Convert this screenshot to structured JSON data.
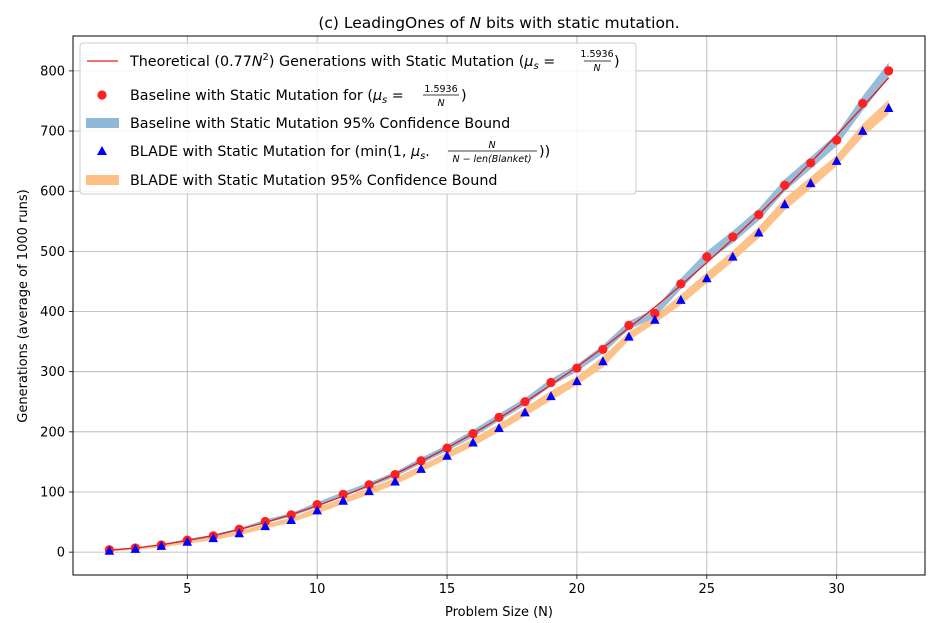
{
  "chart_data": {
    "type": "line",
    "title": "(c) LeadingOnes of N bits with static mutation.",
    "title_parts": [
      "(c) LeadingOnes of ",
      "N",
      " bits with static mutation."
    ],
    "xlabel": "Problem Size (N)",
    "ylabel": "Generations (average of 1000 runs)",
    "xlim": [
      0.6,
      33.4
    ],
    "ylim": [
      -38,
      858
    ],
    "xticks": [
      5,
      10,
      15,
      20,
      25,
      30
    ],
    "yticks": [
      0,
      100,
      200,
      300,
      400,
      500,
      600,
      700,
      800
    ],
    "grid": true,
    "legend_position": "upper-left",
    "colors": {
      "theory": "#e31a1c",
      "baseline_point": "#ff2020",
      "baseline_band": "#8fb8d9",
      "blade_point": "#0000ff",
      "blade_band": "#fdbf84"
    },
    "x": [
      2,
      3,
      4,
      5,
      6,
      7,
      8,
      9,
      10,
      11,
      12,
      13,
      14,
      15,
      16,
      17,
      18,
      19,
      20,
      21,
      22,
      23,
      24,
      25,
      26,
      27,
      28,
      29,
      30,
      31,
      32
    ],
    "series": [
      {
        "name": "theoretical",
        "legend": "Theoretical (0.77N²) Generations with Static Mutation (μs = 1.5936/N)",
        "kind": "line",
        "values": [
          3.1,
          6.9,
          12.3,
          19.3,
          27.7,
          37.7,
          49.3,
          62.4,
          77.0,
          93.2,
          110.9,
          130.1,
          150.9,
          173.3,
          197.1,
          222.5,
          249.5,
          278.0,
          308.0,
          339.6,
          372.7,
          407.3,
          443.5,
          481.3,
          520.5,
          561.3,
          603.7,
          647.6,
          693.0,
          740.0,
          788.5
        ]
      },
      {
        "name": "baseline",
        "legend": "Baseline with Static Mutation for (μs = 1.5936/N)",
        "kind": "points",
        "values": [
          4,
          7,
          12,
          20,
          27,
          38,
          51,
          62,
          79,
          96,
          112,
          129,
          152,
          173,
          197,
          224,
          250,
          282,
          306,
          337,
          377,
          397,
          446,
          491,
          524,
          561,
          610,
          647,
          685,
          746,
          800
        ]
      },
      {
        "name": "baseline_ci",
        "legend": "Baseline with Static Mutation 95% Confidence Bound",
        "kind": "band",
        "lower": [
          3,
          6,
          11,
          18,
          25,
          36,
          48,
          59,
          75,
          92,
          108,
          125,
          147,
          168,
          191,
          218,
          244,
          276,
          300,
          330,
          370,
          390,
          437,
          482,
          514,
          551,
          600,
          637,
          675,
          734,
          788
        ],
        "upper": [
          5,
          8,
          13,
          22,
          29,
          40,
          54,
          65,
          83,
          100,
          116,
          133,
          157,
          178,
          203,
          230,
          256,
          288,
          312,
          344,
          384,
          404,
          455,
          500,
          534,
          571,
          620,
          657,
          695,
          758,
          814
        ]
      },
      {
        "name": "blade",
        "legend": "BLADE with Static Mutation for (min(1, μs · N/(N − len(Blanket))))",
        "kind": "points",
        "values": [
          2,
          5,
          10,
          17,
          23,
          31,
          43,
          53,
          69,
          85,
          101,
          117,
          138,
          160,
          182,
          206,
          232,
          259,
          284,
          317,
          358,
          386,
          419,
          455,
          491,
          531,
          578,
          613,
          650,
          700,
          738
        ]
      },
      {
        "name": "blade_ci",
        "legend": "BLADE with Static Mutation 95% Confidence Bound",
        "kind": "band",
        "lower": [
          1,
          4,
          8,
          14,
          20,
          28,
          39,
          49,
          64,
          80,
          96,
          112,
          133,
          155,
          176,
          200,
          226,
          252,
          278,
          307,
          352,
          380,
          411,
          447,
          483,
          522,
          568,
          604,
          642,
          690,
          728
        ],
        "upper": [
          4,
          7,
          12,
          20,
          26,
          35,
          47,
          57,
          74,
          90,
          107,
          123,
          144,
          166,
          189,
          213,
          240,
          268,
          292,
          325,
          366,
          393,
          428,
          465,
          501,
          541,
          588,
          624,
          660,
          712,
          752
        ]
      }
    ],
    "legend_labels": {
      "theory_a": "Theoretical (0.77",
      "theory_n": "N",
      "theory_sup": "2",
      "theory_b": ") Generations with Static Mutation (",
      "mu": "μ",
      "mu_sub": "s",
      "eq": " = ",
      "frac_num": "1.5936",
      "frac_den": "N",
      "close": ")",
      "baseline_a": "Baseline with Static Mutation for (",
      "baseline_ci": "Baseline with Static Mutation 95% Confidence Bound",
      "blade_a": "BLADE with Static Mutation for (min(1, ",
      "blade_dot": ". ",
      "blade_frac_num": "N",
      "blade_frac_den": "N − len(Blanket)",
      "blade_close": "))",
      "blade_ci": "BLADE with Static Mutation 95% Confidence Bound"
    }
  }
}
